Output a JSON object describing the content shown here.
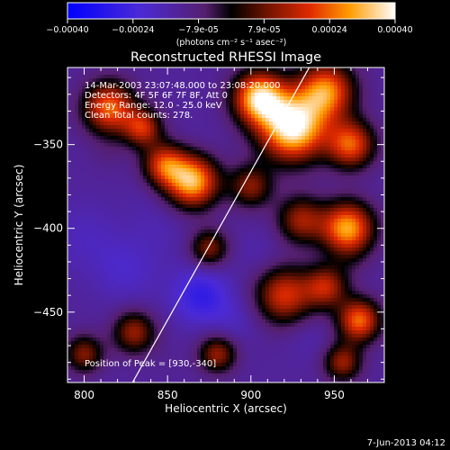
{
  "colorbar": {
    "tick_labels": [
      "-0.00040",
      "-0.00024",
      "-7.9e-05",
      "7.9e-05",
      "0.00024",
      "0.00040"
    ],
    "range": [
      -0.0004,
      0.0004
    ],
    "units": "(photons cm⁻² s⁻¹ asec⁻²)"
  },
  "chart_data": {
    "type": "heatmap",
    "title": "Reconstructed RHESSI Image",
    "xlabel": "Heliocentric X (arcsec)",
    "ylabel": "Heliocentric Y (arcsec)",
    "xlim": [
      790,
      980
    ],
    "ylim": [
      -492,
      -304
    ],
    "x_ticks": [
      800,
      850,
      900,
      950
    ],
    "y_ticks": [
      -350,
      -400,
      -450
    ],
    "annotations": [
      "14-Mar-2003 23:07:48.000 to 23:08:20.000",
      "Detectors: 4F 5F 6F 7F 8F, Att 0",
      "Energy Range: 12.0 - 25.0 keV",
      "Clean     Total counts: 278."
    ],
    "peak_label": "Position of Peak = [930,-340]",
    "peak": [
      930,
      -340
    ],
    "limb_line": [
      [
        829,
        -492
      ],
      [
        935,
        -304
      ]
    ],
    "blobs": [
      {
        "x": 925,
        "y": -340,
        "v": 0.0004,
        "r": 14
      },
      {
        "x": 905,
        "y": -322,
        "v": 0.00034,
        "r": 11
      },
      {
        "x": 945,
        "y": -318,
        "v": 0.00026,
        "r": 12
      },
      {
        "x": 960,
        "y": -350,
        "v": 0.00022,
        "r": 10
      },
      {
        "x": 865,
        "y": -372,
        "v": 0.00032,
        "r": 11
      },
      {
        "x": 848,
        "y": -362,
        "v": 0.00018,
        "r": 9
      },
      {
        "x": 815,
        "y": -328,
        "v": 0.00024,
        "r": 11
      },
      {
        "x": 835,
        "y": -340,
        "v": 0.00016,
        "r": 8
      },
      {
        "x": 958,
        "y": -400,
        "v": 0.0003,
        "r": 11
      },
      {
        "x": 930,
        "y": -395,
        "v": 0.00012,
        "r": 10
      },
      {
        "x": 900,
        "y": -375,
        "v": 0.0001,
        "r": 9
      },
      {
        "x": 920,
        "y": -440,
        "v": 0.00018,
        "r": 12
      },
      {
        "x": 945,
        "y": -435,
        "v": 0.00014,
        "r": 9
      },
      {
        "x": 965,
        "y": -455,
        "v": 0.00024,
        "r": 9
      },
      {
        "x": 875,
        "y": -412,
        "v": 0.0001,
        "r": 8
      },
      {
        "x": 830,
        "y": -462,
        "v": 0.00012,
        "r": 9
      },
      {
        "x": 800,
        "y": -475,
        "v": 0.0001,
        "r": 8
      },
      {
        "x": 880,
        "y": -475,
        "v": 0.00012,
        "r": 8
      },
      {
        "x": 955,
        "y": -480,
        "v": 0.00012,
        "r": 8
      },
      {
        "x": 800,
        "y": -405,
        "v": -0.00018,
        "r": 14
      },
      {
        "x": 825,
        "y": -425,
        "v": -0.0002,
        "r": 14
      },
      {
        "x": 845,
        "y": -400,
        "v": -0.00016,
        "r": 12
      },
      {
        "x": 870,
        "y": -440,
        "v": -0.00028,
        "r": 12
      },
      {
        "x": 890,
        "y": -455,
        "v": -0.00018,
        "r": 10
      },
      {
        "x": 905,
        "y": -415,
        "v": -0.00016,
        "r": 10
      },
      {
        "x": 935,
        "y": -465,
        "v": -0.00016,
        "r": 10
      },
      {
        "x": 870,
        "y": -350,
        "v": -0.00014,
        "r": 10
      },
      {
        "x": 835,
        "y": -380,
        "v": -0.00014,
        "r": 9
      },
      {
        "x": 815,
        "y": -355,
        "v": -0.0001,
        "r": 8
      },
      {
        "x": 960,
        "y": -420,
        "v": -0.0001,
        "r": 8
      },
      {
        "x": 850,
        "y": -480,
        "v": -0.00012,
        "r": 9
      }
    ]
  },
  "footer": {
    "timestamp": "7-Jun-2013 04:12"
  }
}
